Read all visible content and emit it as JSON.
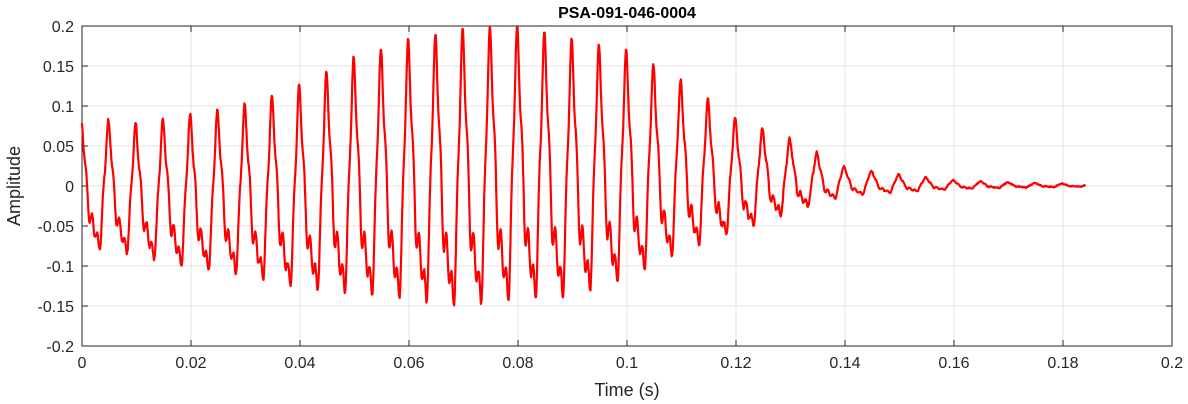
{
  "chart_data": {
    "type": "line",
    "title": "PSA-091-046-0004",
    "xlabel": "Time (s)",
    "ylabel": "Amplitude",
    "xlim": [
      0,
      0.2
    ],
    "ylim": [
      -0.2,
      0.2
    ],
    "xticks": [
      0,
      0.02,
      0.04,
      0.06,
      0.08,
      0.1,
      0.12,
      0.14,
      0.16,
      0.18,
      0.2
    ],
    "xtick_labels": [
      "0",
      "0.02",
      "0.04",
      "0.06",
      "0.08",
      "0.1",
      "0.12",
      "0.14",
      "0.16",
      "0.18",
      "0.2"
    ],
    "yticks": [
      -0.2,
      -0.15,
      -0.1,
      -0.05,
      0,
      0.05,
      0.1,
      0.15,
      0.2
    ],
    "ytick_labels": [
      "-0.2",
      "-0.15",
      "-0.1",
      "-0.05",
      "0",
      "0.05",
      "0.1",
      "0.15",
      "0.2"
    ],
    "grid": true,
    "line_color": "#ff0000",
    "series": [
      {
        "x_start": 0,
        "x_end": 0.184,
        "x_step": 0.0001,
        "dominant_freq_hz": 200,
        "envelope_points": {
          "t": [
            0,
            0.01,
            0.02,
            0.03,
            0.04,
            0.05,
            0.06,
            0.07,
            0.08,
            0.09,
            0.1,
            0.11,
            0.12,
            0.13,
            0.14,
            0.15,
            0.16,
            0.17,
            0.184
          ],
          "peak": [
            0.07,
            0.06,
            0.07,
            0.08,
            0.1,
            0.13,
            0.15,
            0.16,
            0.165,
            0.15,
            0.14,
            0.11,
            0.07,
            0.05,
            0.02,
            0.012,
            0.006,
            0.004,
            0.002
          ],
          "trough": [
            -0.09,
            -0.1,
            -0.12,
            -0.13,
            -0.15,
            -0.16,
            -0.17,
            -0.18,
            -0.17,
            -0.165,
            -0.14,
            -0.1,
            -0.07,
            -0.04,
            -0.015,
            -0.01,
            -0.005,
            -0.003,
            -0.001
          ]
        },
        "secondary_ripple_ratio": 0.35,
        "noise_level": 0.004
      }
    ]
  }
}
